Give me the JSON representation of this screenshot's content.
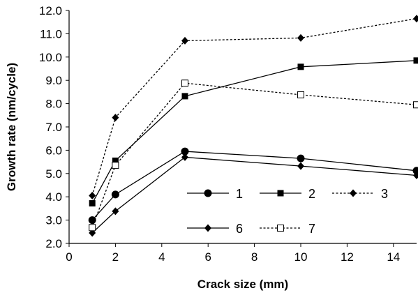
{
  "chart_data": {
    "type": "line",
    "title": "",
    "xlabel": "Crack size (mm)",
    "ylabel": "Growth rate (nm/cycle)",
    "xlim": [
      0,
      15
    ],
    "ylim": [
      2.0,
      12.0
    ],
    "x_ticks": [
      "0",
      "2",
      "4",
      "6",
      "8",
      "10",
      "12",
      "14"
    ],
    "y_ticks": [
      "2.0",
      "3.0",
      "4.0",
      "5.0",
      "6.0",
      "7.0",
      "8.0",
      "9.0",
      "10.0",
      "11.0",
      "12.0"
    ],
    "grid": false,
    "legend_position": "lower-right",
    "series": [
      {
        "name": "1",
        "marker": "circle",
        "line": "solid",
        "x": [
          1,
          2,
          5,
          10,
          15
        ],
        "y": [
          3.0,
          4.1,
          5.95,
          5.65,
          5.12
        ]
      },
      {
        "name": "2",
        "marker": "square",
        "line": "solid",
        "x": [
          1,
          2,
          5,
          10,
          15
        ],
        "y": [
          3.72,
          5.55,
          8.32,
          9.58,
          9.85
        ]
      },
      {
        "name": "3",
        "marker": "diamond",
        "line": "dashed",
        "x": [
          1,
          2,
          5,
          10,
          15
        ],
        "y": [
          4.05,
          7.4,
          10.7,
          10.82,
          11.65
        ]
      },
      {
        "name": "6",
        "marker": "diamond",
        "line": "solid",
        "x": [
          1,
          2,
          5,
          10,
          15
        ],
        "y": [
          2.45,
          3.38,
          5.7,
          5.32,
          4.92
        ]
      },
      {
        "name": "7",
        "marker": "open-square",
        "line": "dashed",
        "x": [
          1,
          2,
          5,
          10,
          15
        ],
        "y": [
          2.68,
          5.35,
          8.88,
          8.38,
          7.95
        ]
      }
    ]
  }
}
